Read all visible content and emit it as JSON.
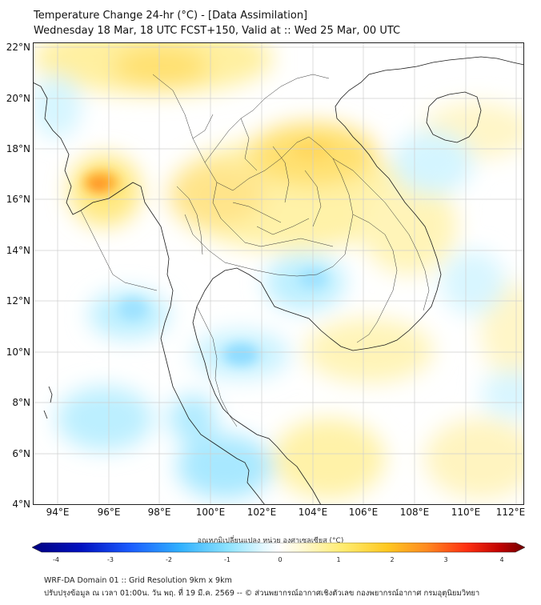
{
  "header": {
    "title": "Temperature Change 24-hr (°C) - [Data Assimilation]",
    "subtitle": "Wednesday 18 Mar, 18 UTC FCST+150, Valid at :: Wed 25 Mar, 00 UTC"
  },
  "map": {
    "lat_labels": [
      "22°N",
      "20°N",
      "18°N",
      "16°N",
      "14°N",
      "12°N",
      "10°N",
      "8°N",
      "6°N",
      "4°N"
    ],
    "lon_labels": [
      "94°E",
      "96°E",
      "98°E",
      "100°E",
      "102°E",
      "104°E",
      "106°E",
      "108°E",
      "110°E",
      "112°E"
    ]
  },
  "colorbar": {
    "title": "อุณหภูมิเปลี่ยนแปลง หน่วย องศาเซลเซียส (°C)",
    "ticks": [
      "-4",
      "-3",
      "-2",
      "-1",
      "0",
      "1",
      "2",
      "3",
      "4"
    ],
    "colors": [
      "#000080",
      "#0000d0",
      "#1a5cff",
      "#2fb0ff",
      "#7fe0ff",
      "#d8f4ff",
      "#ffffff",
      "#fff6c0",
      "#ffe860",
      "#ffc820",
      "#ff9020",
      "#ff4010",
      "#c00000",
      "#700000"
    ]
  },
  "footer": {
    "line1": "WRF-DA Domain 01 :: Grid Resolution 9km x 9km",
    "line2": "ปรับปรุงข้อมูล ณ เวลา 01:00น. วัน พฤ. ที่ 19 มี.ค. 2569 -- © ส่วนพยากรณ์อากาศเชิงตัวเลข กองพยากรณ์อากาศ กรมอุตุนิยมวิทยา"
  }
}
